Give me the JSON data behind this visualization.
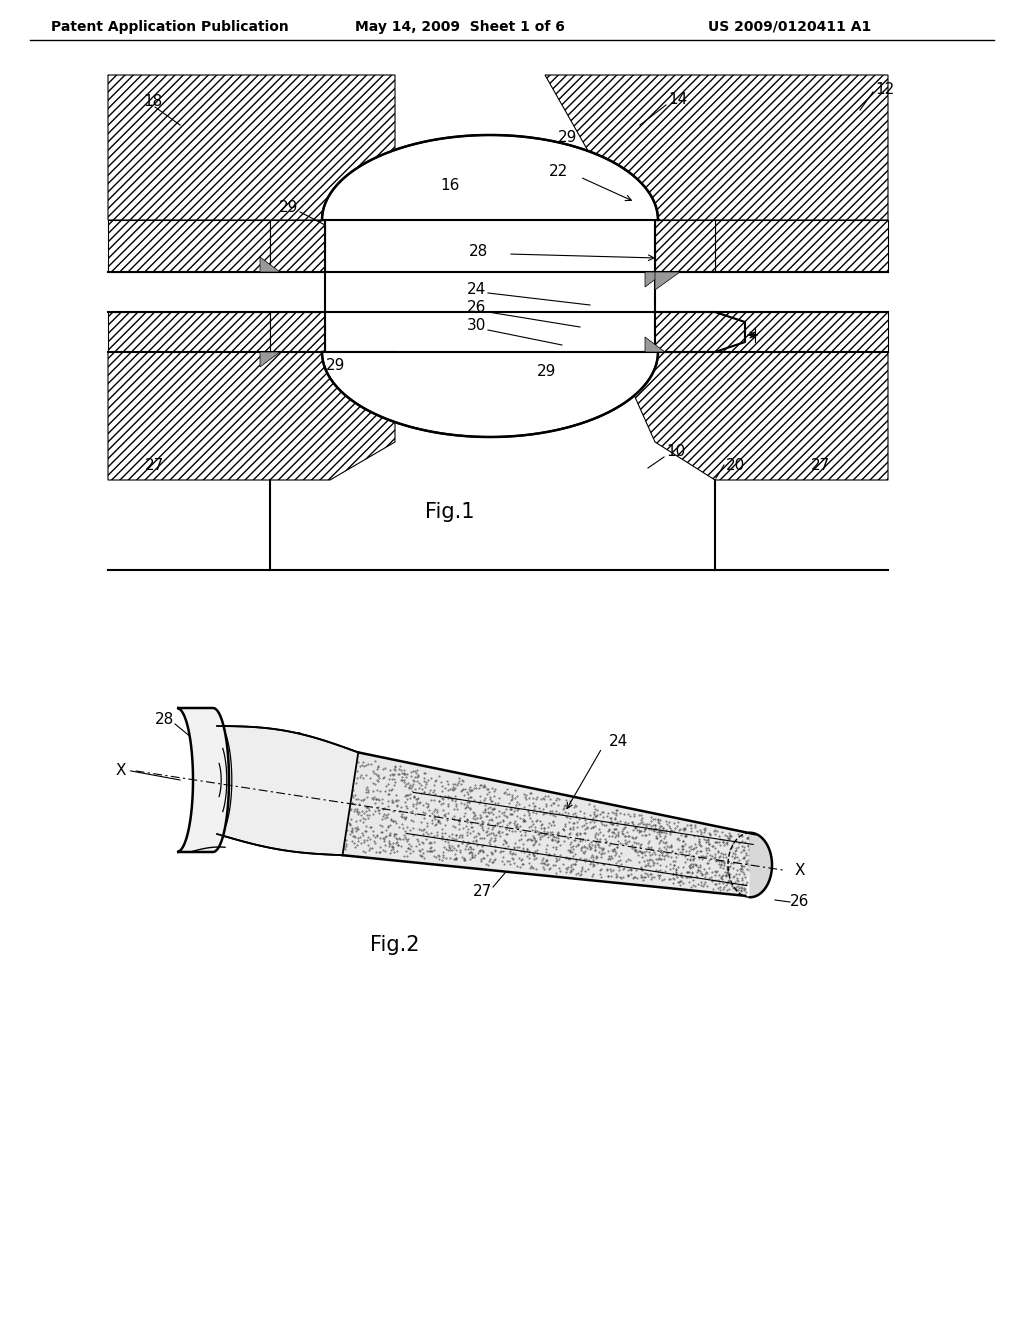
{
  "background_color": "#ffffff",
  "header_left": "Patent Application Publication",
  "header_mid": "May 14, 2009  Sheet 1 of 6",
  "header_right": "US 2009/0120411 A1",
  "fig1_caption": "Fig.1",
  "fig2_caption": "Fig.2",
  "line_color": "#000000",
  "hatch_color": "#000000",
  "label_color": "#000000"
}
